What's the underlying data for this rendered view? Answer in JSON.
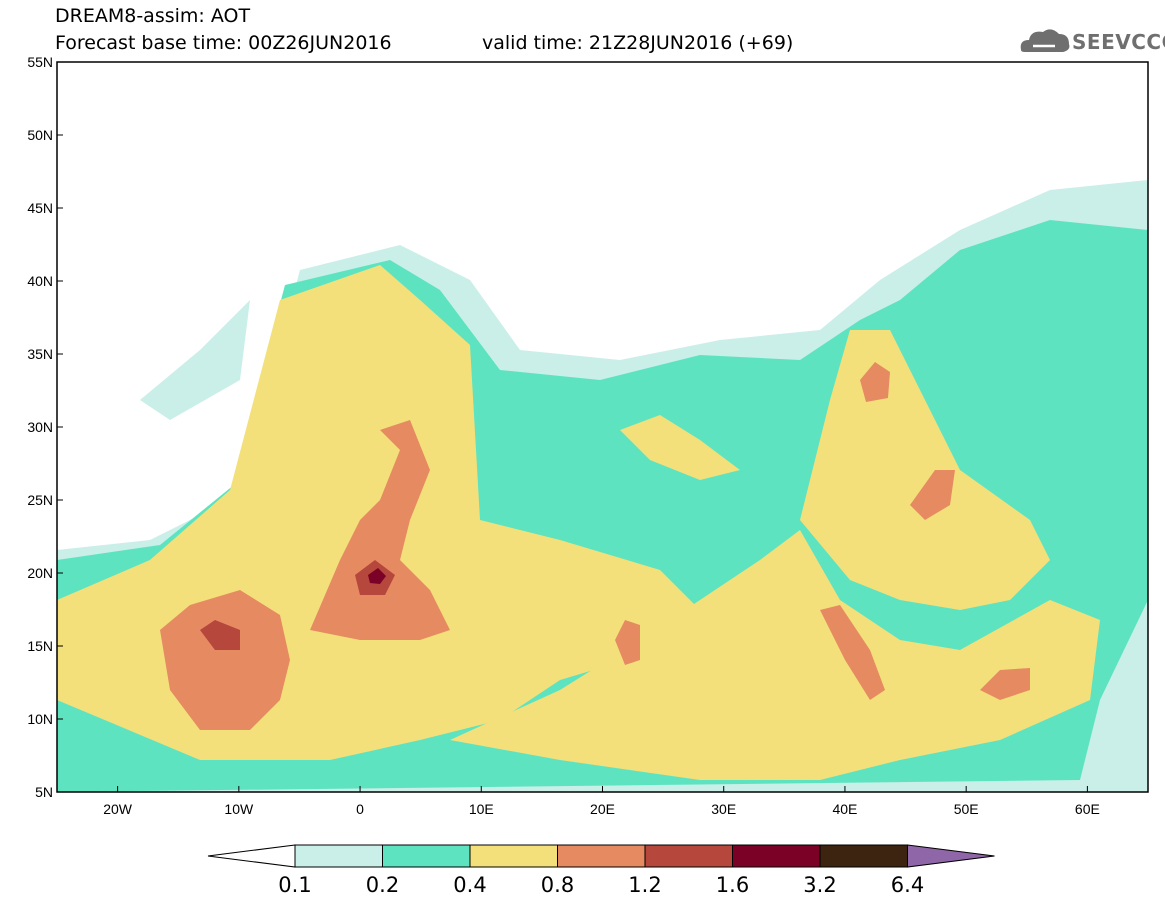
{
  "header": {
    "line1": "DREAM8-assim: AOT",
    "line2": "Forecast base time: 00Z26JUN2016",
    "line3": "valid time: 21Z28JUN2016 (+69)"
  },
  "logo": {
    "text": "SEEVCCC",
    "icon": "cloud-icon"
  },
  "map": {
    "lon_range": [
      -25,
      65
    ],
    "lat_range": [
      5,
      55
    ],
    "lon_ticks": [
      "20W",
      "10W",
      "0",
      "10E",
      "20E",
      "30E",
      "40E",
      "50E",
      "60E"
    ],
    "lat_ticks": [
      "55N",
      "50N",
      "45N",
      "40N",
      "35N",
      "30N",
      "25N",
      "20N",
      "15N",
      "10N",
      "5N"
    ],
    "variable": "AOT"
  },
  "colorbar": {
    "labels": [
      "0.1",
      "0.2",
      "0.4",
      "0.8",
      "1.2",
      "1.6",
      "3.2",
      "6.4"
    ],
    "colors": [
      "#c9efe8",
      "#5ee3c1",
      "#f4e07a",
      "#e68a62",
      "#b5473d",
      "#7c0126",
      "#3d2411",
      "#8f66a8"
    ],
    "under_color": "#ffffff"
  }
}
